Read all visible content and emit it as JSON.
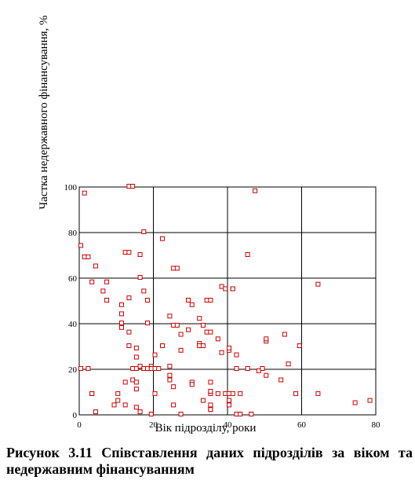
{
  "caption": "Рисунок 3.11 Співставлення даних підрозділів за віком та недержавним фінансуванням",
  "chart_data": {
    "type": "scatter",
    "title": "",
    "xlabel": "Вік підрозділу, роки",
    "ylabel": "Частка недержавного фінансування, %",
    "xlim": [
      0,
      80
    ],
    "ylim": [
      0,
      100
    ],
    "xticks": [
      0,
      20,
      40,
      60,
      80
    ],
    "yticks": [
      0,
      20,
      40,
      60,
      80,
      100
    ],
    "grid": true,
    "marker_color": "#cc0000",
    "x": [
      0,
      0,
      1,
      1,
      2,
      2,
      3,
      3,
      3,
      4,
      4,
      6,
      7,
      7,
      9,
      10,
      10,
      11,
      11,
      11,
      11,
      12,
      12,
      12,
      13,
      13,
      13,
      13,
      13,
      14,
      14,
      14,
      15,
      15,
      15,
      15,
      15,
      15,
      16,
      16,
      16,
      16,
      17,
      17,
      17,
      17,
      18,
      18,
      18,
      18,
      19,
      19,
      19,
      19,
      20,
      20,
      20,
      21,
      22,
      22,
      24,
      24,
      24,
      24,
      25,
      25,
      25,
      25,
      26,
      26,
      27,
      27,
      27,
      29,
      29,
      30,
      30,
      30,
      32,
      32,
      32,
      33,
      33,
      33,
      34,
      34,
      35,
      35,
      35,
      35,
      35,
      35,
      35,
      35,
      37,
      37,
      38,
      38,
      39,
      39,
      40,
      40,
      40,
      40,
      40,
      41,
      41,
      41,
      42,
      42,
      42,
      43,
      43,
      45,
      45,
      46,
      47,
      48,
      49,
      50,
      50,
      50,
      54,
      55,
      56,
      58,
      59,
      64,
      64,
      74,
      78
    ],
    "y": [
      74,
      20,
      97,
      69,
      69,
      20,
      9,
      58,
      9,
      1,
      65,
      54,
      58,
      50,
      4,
      9,
      6,
      38,
      48,
      44,
      40,
      14,
      71,
      4,
      100,
      71,
      51,
      36,
      30,
      100,
      20,
      15,
      29,
      25,
      14,
      11,
      3,
      20,
      70,
      60,
      21,
      1,
      80,
      54,
      20,
      20,
      50,
      40,
      20,
      20,
      20,
      0,
      21,
      20,
      26,
      20,
      9,
      20,
      77,
      30,
      43,
      21,
      17,
      15,
      39,
      64,
      12,
      4,
      39,
      64,
      35,
      28,
      0,
      50,
      37,
      48,
      14,
      13,
      42,
      31,
      30,
      39,
      30,
      6,
      50,
      36,
      2,
      9,
      14,
      4,
      50,
      10,
      2,
      36,
      33,
      9,
      56,
      27,
      9,
      55,
      6,
      4,
      9,
      28,
      29,
      55,
      55,
      9,
      26,
      20,
      0,
      0,
      9,
      70,
      20,
      0,
      98,
      19,
      20,
      32,
      33,
      17,
      15,
      35,
      22,
      9,
      30,
      9,
      57,
      5,
      6
    ]
  }
}
